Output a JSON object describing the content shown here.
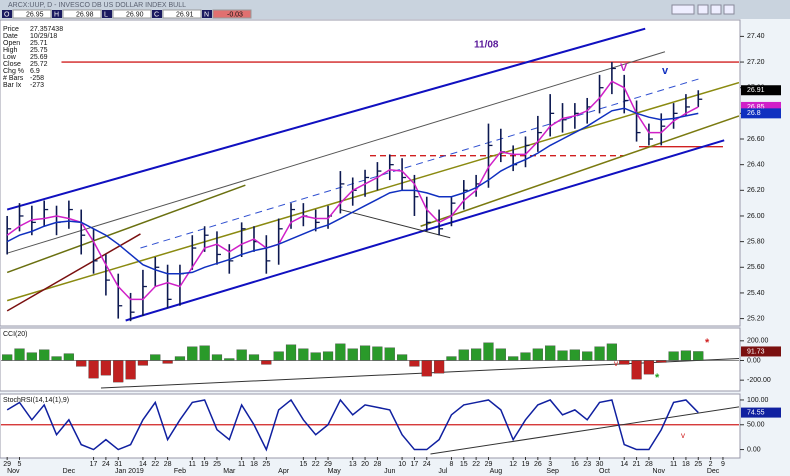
{
  "header": {
    "title": "ARCX:UUP, D - INVESCO DB US DOLLAR INDEX BULL",
    "fields": [
      {
        "label": "O",
        "value": "26.95"
      },
      {
        "label": "H",
        "value": "26.98"
      },
      {
        "label": "L",
        "value": "26.90"
      },
      {
        "label": "C",
        "value": "26.91"
      },
      {
        "label": "N",
        "value": "-0.03"
      }
    ]
  },
  "info_panel": [
    [
      "Price",
      "27.357438"
    ],
    [
      "Date",
      "10/29/18"
    ],
    [
      "Open",
      "25.71"
    ],
    [
      "High",
      "25.75"
    ],
    [
      "Low",
      "25.69"
    ],
    [
      "Close",
      "25.72"
    ],
    [
      "Chg %",
      "6.9"
    ],
    [
      "# Bars",
      "-258"
    ],
    [
      "Bar Ix",
      "-273"
    ]
  ],
  "annotations": [
    "11/08",
    "V",
    "v",
    "*",
    "*",
    "v",
    "v"
  ],
  "chart_data": [
    {
      "type": "ohlc",
      "bar_color": "#0c1850",
      "readout_color": "#000000",
      "xlim": [
        -0.5,
        59.3
      ],
      "ylim": [
        25.15,
        27.52
      ],
      "yticks": [
        {
          "value": 25.2,
          "label": "25.20"
        },
        {
          "value": 25.4,
          "label": "25.40"
        },
        {
          "value": 25.6,
          "label": "25.60"
        },
        {
          "value": 25.8,
          "label": "25.80"
        },
        {
          "value": 26,
          "label": "26.00"
        },
        {
          "value": 26.2,
          "label": "26.20"
        },
        {
          "value": 26.4,
          "label": "26.40"
        },
        {
          "value": 26.6,
          "label": "26.60"
        },
        {
          "value": 26.8,
          "label": "26.80"
        },
        {
          "value": 27,
          "label": "27.00"
        },
        {
          "value": 27.2,
          "label": "27.20"
        },
        {
          "value": 27.4,
          "label": "27.40"
        }
      ],
      "high": [
        26.0,
        26.1,
        26.08,
        26.12,
        26.08,
        26.12,
        26.05,
        25.9,
        25.7,
        25.55,
        25.4,
        25.58,
        25.68,
        25.62,
        25.62,
        25.85,
        25.92,
        25.88,
        25.78,
        25.95,
        25.92,
        25.85,
        25.98,
        26.1,
        26.1,
        26.05,
        26.08,
        26.35,
        26.3,
        26.36,
        26.42,
        26.48,
        26.45,
        26.32,
        26.15,
        26.05,
        26.15,
        26.28,
        26.32,
        26.72,
        26.68,
        26.55,
        26.62,
        26.78,
        26.95,
        26.88,
        26.88,
        26.92,
        27.1,
        27.2,
        27.1,
        26.9,
        26.72,
        26.8,
        26.88,
        26.95,
        26.98
      ],
      "low": [
        25.7,
        25.88,
        25.85,
        25.92,
        25.85,
        25.9,
        25.7,
        25.55,
        25.38,
        25.2,
        25.18,
        25.22,
        25.45,
        25.28,
        25.3,
        25.58,
        25.72,
        25.62,
        25.55,
        25.68,
        25.72,
        25.55,
        25.62,
        25.9,
        25.92,
        25.88,
        25.9,
        26.02,
        26.08,
        26.15,
        26.2,
        26.28,
        26.2,
        26.0,
        25.88,
        25.85,
        25.92,
        26.05,
        26.15,
        26.22,
        26.42,
        26.35,
        26.38,
        26.5,
        26.62,
        26.65,
        26.68,
        26.72,
        26.8,
        26.95,
        26.8,
        26.58,
        26.55,
        26.55,
        26.68,
        26.78,
        26.85
      ],
      "close": [
        25.9,
        26.0,
        25.95,
        26.05,
        25.95,
        26.05,
        25.85,
        25.65,
        25.5,
        25.3,
        25.25,
        25.45,
        25.6,
        25.35,
        25.55,
        25.75,
        25.85,
        25.7,
        25.65,
        25.9,
        25.8,
        25.65,
        25.9,
        26.05,
        26.0,
        25.95,
        26.0,
        26.25,
        26.2,
        26.3,
        26.35,
        26.4,
        26.3,
        26.15,
        25.95,
        25.9,
        26.1,
        26.2,
        26.25,
        26.55,
        26.5,
        26.4,
        26.55,
        26.65,
        26.8,
        26.75,
        26.8,
        26.85,
        27.0,
        27.15,
        26.9,
        26.65,
        26.6,
        26.7,
        26.8,
        26.85,
        26.91
      ],
      "series": [
        {
          "color": "#d020c8",
          "readout": true,
          "values": [
            25.85,
            25.92,
            25.97,
            25.98,
            26.0,
            25.98,
            25.95,
            25.8,
            25.62,
            25.45,
            25.35,
            25.35,
            25.45,
            25.48,
            25.45,
            25.6,
            25.75,
            25.78,
            25.72,
            25.78,
            25.82,
            25.75,
            25.78,
            25.95,
            26.0,
            25.98,
            25.98,
            26.1,
            26.2,
            26.25,
            26.3,
            26.36,
            26.35,
            26.25,
            26.05,
            25.95,
            26.0,
            26.12,
            26.2,
            26.38,
            26.5,
            26.48,
            26.48,
            26.58,
            26.7,
            26.76,
            26.78,
            26.82,
            26.92,
            27.05,
            27.0,
            26.8,
            26.65,
            26.65,
            26.74,
            26.8,
            26.85
          ]
        },
        {
          "color": "#1030c0",
          "readout": true,
          "values": [
            25.8,
            25.85,
            25.88,
            25.92,
            25.95,
            25.96,
            25.95,
            25.9,
            25.85,
            25.78,
            25.7,
            25.62,
            25.58,
            25.55,
            25.55,
            25.56,
            25.6,
            25.63,
            25.66,
            25.7,
            25.73,
            25.75,
            25.78,
            25.82,
            25.86,
            25.9,
            25.93,
            25.98,
            26.03,
            26.08,
            26.13,
            26.18,
            26.2,
            26.2,
            26.18,
            26.15,
            26.15,
            26.18,
            26.22,
            26.28,
            26.35,
            26.4,
            26.44,
            26.49,
            26.55,
            26.6,
            26.65,
            26.7,
            26.76,
            26.82,
            26.84,
            26.8,
            26.77,
            26.75,
            26.76,
            26.78,
            26.8
          ]
        }
      ],
      "levels": [
        {
          "value": 27.2,
          "x": [
            4.4,
            59.3
          ],
          "color": "#d02020",
          "dash": false
        },
        {
          "value": 26.47,
          "x": [
            29.4,
            50
          ],
          "color": "#d02020",
          "dash": true
        },
        {
          "value": 26.54,
          "x": [
            51.2,
            58
          ],
          "color": "#d02020",
          "dash": false
        }
      ],
      "trendlines": [
        {
          "x": [
            0,
            51.7
          ],
          "values": [
            26.05,
            27.46
          ],
          "color": "#1010c0",
          "width": 2,
          "dash": false
        },
        {
          "x": [
            9.6,
            58.1
          ],
          "values": [
            25.185,
            26.59
          ],
          "color": "#1010c0",
          "width": 2,
          "dash": false
        },
        {
          "x": [
            0,
            53.3
          ],
          "values": [
            25.71,
            27.28
          ],
          "color": "#555555",
          "width": 1,
          "dash": false
        },
        {
          "x": [
            10.8,
            56.1
          ],
          "values": [
            25.75,
            27.07
          ],
          "color": "#3050d0",
          "width": 1,
          "dash": true
        },
        {
          "x": [
            0,
            59.3
          ],
          "values": [
            25.34,
            27.04
          ],
          "color": "#8a8a10",
          "width": 1.5,
          "dash": false
        },
        {
          "x": [
            0,
            19.3
          ],
          "values": [
            25.56,
            26.24
          ],
          "color": "#6a7010",
          "width": 1.5,
          "dash": false
        },
        {
          "x": [
            0,
            10.8
          ],
          "values": [
            25.26,
            25.86
          ],
          "color": "#7a1010",
          "width": 1.5,
          "dash": false
        },
        {
          "x": [
            33.5,
            59.3
          ],
          "values": [
            25.92,
            26.78
          ],
          "color": "#7a7a10",
          "width": 1.5,
          "dash": false
        },
        {
          "x": [
            27,
            35.9
          ],
          "values": [
            26.05,
            25.83
          ],
          "color": "#333333",
          "width": 1,
          "dash": false
        }
      ]
    },
    {
      "type": "histogram",
      "title": "CCI(20)",
      "pos_color": "#2a9a2a",
      "neg_color": "#c02020",
      "readout_color": "#7a1010",
      "xlim": [
        -0.5,
        59.3
      ],
      "ylim": [
        -300,
        320
      ],
      "yticks": [
        {
          "value": -200,
          "label": "-200.00"
        },
        {
          "value": 0,
          "label": "0.00"
        },
        {
          "value": 200,
          "label": "200.00"
        }
      ],
      "values": [
        60,
        120,
        80,
        110,
        40,
        70,
        -60,
        -180,
        -150,
        -220,
        -190,
        -50,
        60,
        -30,
        40,
        140,
        150,
        60,
        20,
        110,
        60,
        -40,
        90,
        160,
        120,
        80,
        90,
        170,
        120,
        150,
        140,
        130,
        60,
        -60,
        -160,
        -130,
        40,
        110,
        120,
        180,
        120,
        40,
        80,
        120,
        150,
        100,
        110,
        90,
        140,
        170,
        -40,
        -190,
        -140,
        -20,
        90,
        100,
        91.73
      ],
      "trendlines": [
        {
          "x": [
            7.6,
            59.3
          ],
          "values": [
            -280,
            20
          ],
          "color": "#333333",
          "width": 1,
          "dash": false
        }
      ]
    },
    {
      "type": "line",
      "title": "StochRSI(14,14(1),9)",
      "readout_color": "#1020a0",
      "xlim": [
        -0.5,
        59.3
      ],
      "ylim": [
        -15,
        110
      ],
      "yticks": [
        {
          "value": 0,
          "label": "0.00"
        },
        {
          "value": 50,
          "label": "50.00"
        },
        {
          "value": 100,
          "label": "100.00"
        }
      ],
      "series": [
        {
          "color": "#1020a0",
          "readout": true,
          "values": [
            80,
            95,
            60,
            90,
            30,
            60,
            10,
            0,
            20,
            0,
            10,
            60,
            95,
            20,
            60,
            95,
            100,
            40,
            20,
            90,
            50,
            0,
            80,
            100,
            60,
            30,
            50,
            100,
            70,
            90,
            85,
            80,
            30,
            0,
            0,
            20,
            70,
            90,
            95,
            100,
            80,
            20,
            60,
            90,
            100,
            70,
            80,
            60,
            95,
            100,
            10,
            0,
            0,
            40,
            95,
            100,
            74.55
          ]
        }
      ],
      "levels": [
        {
          "value": 50,
          "x": [
            -0.5,
            59.3
          ],
          "color": "#d02020",
          "dash": false
        }
      ],
      "trendlines": [
        {
          "x": [
            34.3,
            59.3
          ],
          "values": [
            -9,
            86
          ],
          "color": "#333333",
          "width": 1,
          "dash": false
        }
      ],
      "xticks": [
        {
          "value": 0,
          "label": "29"
        },
        {
          "value": 1,
          "label": "5"
        },
        {
          "value": 7,
          "label": "17"
        },
        {
          "value": 8,
          "label": "24"
        },
        {
          "value": 9,
          "label": "31"
        },
        {
          "value": 11,
          "label": "14"
        },
        {
          "value": 12,
          "label": "22"
        },
        {
          "value": 13,
          "label": "28"
        },
        {
          "value": 15,
          "label": "11"
        },
        {
          "value": 16,
          "label": "19"
        },
        {
          "value": 17,
          "label": "25"
        },
        {
          "value": 19,
          "label": "11"
        },
        {
          "value": 20,
          "label": "18"
        },
        {
          "value": 21,
          "label": "25"
        },
        {
          "value": 24,
          "label": "15"
        },
        {
          "value": 25,
          "label": "22"
        },
        {
          "value": 26,
          "label": "29"
        },
        {
          "value": 28,
          "label": "13"
        },
        {
          "value": 29,
          "label": "20"
        },
        {
          "value": 30,
          "label": "28"
        },
        {
          "value": 32,
          "label": "10"
        },
        {
          "value": 33,
          "label": "17"
        },
        {
          "value": 34,
          "label": "24"
        },
        {
          "value": 36,
          "label": "8"
        },
        {
          "value": 37,
          "label": "15"
        },
        {
          "value": 38,
          "label": "22"
        },
        {
          "value": 39,
          "label": "29"
        },
        {
          "value": 41,
          "label": "12"
        },
        {
          "value": 42,
          "label": "19"
        },
        {
          "value": 43,
          "label": "26"
        },
        {
          "value": 44,
          "label": "3"
        },
        {
          "value": 46,
          "label": "16"
        },
        {
          "value": 47,
          "label": "23"
        },
        {
          "value": 48,
          "label": "30"
        },
        {
          "value": 50,
          "label": "14"
        },
        {
          "value": 51,
          "label": "21"
        },
        {
          "value": 52,
          "label": "28"
        },
        {
          "value": 54,
          "label": "11"
        },
        {
          "value": 55,
          "label": "18"
        },
        {
          "value": 56,
          "label": "25"
        },
        {
          "value": 57,
          "label": "2"
        },
        {
          "value": 58,
          "label": "9"
        }
      ],
      "month_ticks": [
        {
          "value": 0.5,
          "label": "Nov"
        },
        {
          "value": 5,
          "label": "Dec"
        },
        {
          "value": 9.9,
          "label": "Jan 2019"
        },
        {
          "value": 14,
          "label": "Feb"
        },
        {
          "value": 18,
          "label": "Mar"
        },
        {
          "value": 22.4,
          "label": "Apr"
        },
        {
          "value": 26.5,
          "label": "May"
        },
        {
          "value": 31,
          "label": "Jun"
        },
        {
          "value": 35.3,
          "label": "Jul"
        },
        {
          "value": 39.6,
          "label": "Aug"
        },
        {
          "value": 44.2,
          "label": "Sep"
        },
        {
          "value": 48.4,
          "label": "Oct"
        },
        {
          "value": 52.8,
          "label": "Nov"
        },
        {
          "value": 57.2,
          "label": "Dec"
        }
      ]
    }
  ]
}
